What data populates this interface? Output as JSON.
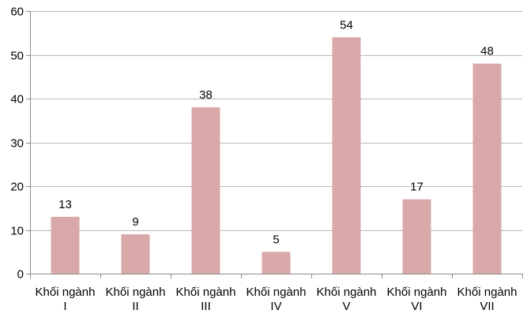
{
  "chart_data": {
    "type": "bar",
    "categories": [
      [
        "Khối ngành",
        "I"
      ],
      [
        "Khối ngành",
        "II"
      ],
      [
        "Khối ngành",
        "III"
      ],
      [
        "Khối ngành",
        "IV"
      ],
      [
        "Khối ngành",
        "V"
      ],
      [
        "Khối ngành",
        "VI"
      ],
      [
        "Khối ngành",
        "VII"
      ]
    ],
    "values": [
      13,
      9,
      38,
      5,
      54,
      17,
      48
    ],
    "data_labels": [
      "13",
      "9",
      "38",
      "5",
      "54",
      "17",
      "48"
    ],
    "ylim": [
      0,
      60
    ],
    "yticks": [
      0,
      10,
      20,
      30,
      40,
      50,
      60
    ],
    "grid": true,
    "legend": "none",
    "colors": {
      "bar": "#d9a8a9",
      "grid": "#b8b8b8",
      "axis": "#8c8c8c"
    }
  }
}
